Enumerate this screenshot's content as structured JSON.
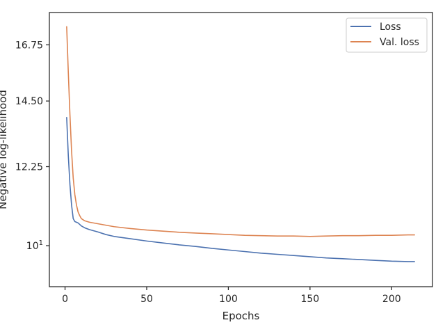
{
  "chart_data": {
    "type": "line",
    "xlabel": "Epochs",
    "ylabel": "Negative log-likelihood",
    "y_scale": "log",
    "xlim": [
      -9.6,
      225
    ],
    "ylim": [
      9.0,
      18.2
    ],
    "x_ticks": [
      0,
      50,
      100,
      150,
      200
    ],
    "x_tick_labels": [
      "0",
      "50",
      "100",
      "150",
      "200"
    ],
    "y_ticks": [
      10,
      12.25,
      14.5,
      16.75
    ],
    "y_tick_labels": [
      "10^1",
      "12.25",
      "14.50",
      "16.75"
    ],
    "grid": false,
    "legend_position": "top-right",
    "series": [
      {
        "name": "Loss",
        "color": "#4c72b0",
        "x": [
          1,
          2,
          3,
          4,
          5,
          6,
          8,
          10,
          12,
          15,
          20,
          25,
          30,
          40,
          50,
          60,
          70,
          80,
          90,
          100,
          110,
          120,
          130,
          140,
          150,
          160,
          170,
          180,
          190,
          200,
          210,
          214
        ],
        "y": [
          13.9,
          12.6,
          11.7,
          11.1,
          10.72,
          10.64,
          10.6,
          10.52,
          10.47,
          10.42,
          10.36,
          10.29,
          10.24,
          10.18,
          10.12,
          10.07,
          10.02,
          9.98,
          9.93,
          9.89,
          9.85,
          9.81,
          9.78,
          9.75,
          9.72,
          9.69,
          9.67,
          9.65,
          9.63,
          9.61,
          9.6,
          9.6
        ]
      },
      {
        "name": "Val. loss",
        "color": "#dd8452",
        "x": [
          1,
          2,
          3,
          4,
          5,
          6,
          7,
          8,
          9,
          10,
          12,
          15,
          20,
          25,
          30,
          40,
          50,
          60,
          70,
          80,
          90,
          100,
          110,
          120,
          130,
          140,
          150,
          160,
          170,
          180,
          190,
          200,
          210,
          214
        ],
        "y": [
          17.55,
          15.6,
          14.0,
          12.75,
          11.9,
          11.4,
          11.1,
          10.9,
          10.8,
          10.72,
          10.66,
          10.62,
          10.58,
          10.54,
          10.5,
          10.45,
          10.41,
          10.38,
          10.35,
          10.33,
          10.31,
          10.29,
          10.27,
          10.26,
          10.25,
          10.25,
          10.24,
          10.25,
          10.26,
          10.26,
          10.27,
          10.27,
          10.28,
          10.28
        ]
      }
    ]
  }
}
